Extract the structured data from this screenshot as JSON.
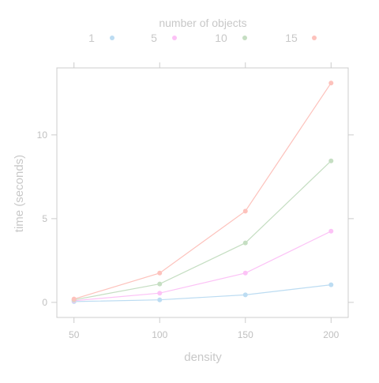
{
  "chart_data": {
    "type": "line",
    "title": "",
    "xlabel": "density",
    "ylabel": "time (seconds)",
    "legend": {
      "title": "number of objects",
      "placement": "top"
    },
    "x": [
      50,
      100,
      150,
      200
    ],
    "x_ticks": [
      50,
      100,
      150,
      200
    ],
    "y_ticks": [
      0,
      5,
      10
    ],
    "xlim": [
      40,
      210
    ],
    "ylim": [
      -0.9,
      14.0
    ],
    "grid": false,
    "series": [
      {
        "name": "1",
        "color": "#bcdcf2",
        "values": [
          0.05,
          0.15,
          0.45,
          1.05
        ]
      },
      {
        "name": "5",
        "color": "#fcc2f6",
        "values": [
          0.1,
          0.55,
          1.75,
          4.25
        ]
      },
      {
        "name": "10",
        "color": "#c5dec2",
        "values": [
          0.15,
          1.1,
          3.55,
          8.45
        ]
      },
      {
        "name": "15",
        "color": "#fdc2bc",
        "values": [
          0.2,
          1.75,
          5.45,
          13.1
        ]
      }
    ]
  },
  "colors": {
    "axis": "#cccccc",
    "text": "#c8c8c8",
    "tick_label": "#c0c0c0"
  }
}
